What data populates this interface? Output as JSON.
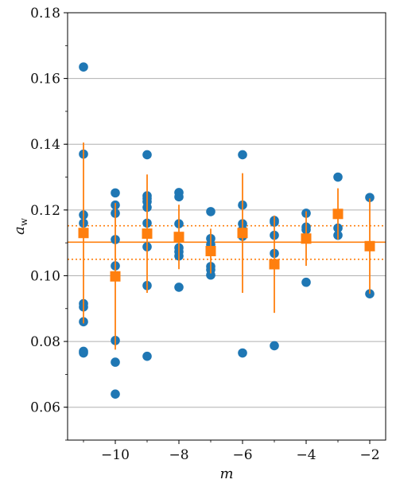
{
  "chart_data": {
    "type": "scatter",
    "title": "",
    "xlabel": "m",
    "ylabel": "a",
    "ylabel_subscript": "w",
    "xlim": [
      -11.5,
      -1.5
    ],
    "ylim": [
      0.05,
      0.18
    ],
    "x_ticks": [
      -10,
      -8,
      -6,
      -4,
      -2
    ],
    "x_tick_labels": [
      "−10",
      "−8",
      "−6",
      "−4",
      "−2"
    ],
    "y_ticks": [
      0.06,
      0.08,
      0.1,
      0.12,
      0.14,
      0.16,
      0.18
    ],
    "y_tick_labels": [
      "0.06",
      "0.08",
      "0.10",
      "0.12",
      "0.14",
      "0.16",
      "0.18"
    ],
    "y_minor_step": 0.01,
    "x_minor_step": 1,
    "grid": "y-major",
    "colors": {
      "points": "#1f77b4",
      "means": "#ff7f0e",
      "grid": "#b0b0b0"
    },
    "series": [
      {
        "kind": "individual",
        "points": [
          {
            "x": -11,
            "y": 0.1635
          },
          {
            "x": -11,
            "y": 0.137
          },
          {
            "x": -11,
            "y": 0.1185
          },
          {
            "x": -11,
            "y": 0.116
          },
          {
            "x": -11,
            "y": 0.0915
          },
          {
            "x": -11,
            "y": 0.0905
          },
          {
            "x": -11,
            "y": 0.086
          },
          {
            "x": -11,
            "y": 0.077
          },
          {
            "x": -11,
            "y": 0.0765
          },
          {
            "x": -10,
            "y": 0.1252
          },
          {
            "x": -10,
            "y": 0.1215
          },
          {
            "x": -10,
            "y": 0.119
          },
          {
            "x": -10,
            "y": 0.111
          },
          {
            "x": -10,
            "y": 0.103
          },
          {
            "x": -10,
            "y": 0.0803
          },
          {
            "x": -10,
            "y": 0.0737
          },
          {
            "x": -10,
            "y": 0.064
          },
          {
            "x": -9,
            "y": 0.1368
          },
          {
            "x": -9,
            "y": 0.1243
          },
          {
            "x": -9,
            "y": 0.1235
          },
          {
            "x": -9,
            "y": 0.1225
          },
          {
            "x": -9,
            "y": 0.1208
          },
          {
            "x": -9,
            "y": 0.116
          },
          {
            "x": -9,
            "y": 0.1088
          },
          {
            "x": -9,
            "y": 0.097
          },
          {
            "x": -9,
            "y": 0.0755
          },
          {
            "x": -8,
            "y": 0.1253
          },
          {
            "x": -8,
            "y": 0.124
          },
          {
            "x": -8,
            "y": 0.1158
          },
          {
            "x": -8,
            "y": 0.1085
          },
          {
            "x": -8,
            "y": 0.1073
          },
          {
            "x": -8,
            "y": 0.106
          },
          {
            "x": -8,
            "y": 0.0965
          },
          {
            "x": -7,
            "y": 0.1195
          },
          {
            "x": -7,
            "y": 0.1113
          },
          {
            "x": -7,
            "y": 0.1095
          },
          {
            "x": -7,
            "y": 0.1028
          },
          {
            "x": -7,
            "y": 0.1018
          },
          {
            "x": -7,
            "y": 0.1002
          },
          {
            "x": -6,
            "y": 0.1368
          },
          {
            "x": -6,
            "y": 0.1215
          },
          {
            "x": -6,
            "y": 0.1158
          },
          {
            "x": -6,
            "y": 0.114
          },
          {
            "x": -6,
            "y": 0.112
          },
          {
            "x": -6,
            "y": 0.0765
          },
          {
            "x": -5,
            "y": 0.1168
          },
          {
            "x": -5,
            "y": 0.1163
          },
          {
            "x": -5,
            "y": 0.1123
          },
          {
            "x": -5,
            "y": 0.1068
          },
          {
            "x": -5,
            "y": 0.0787
          },
          {
            "x": -4,
            "y": 0.119
          },
          {
            "x": -4,
            "y": 0.1148
          },
          {
            "x": -4,
            "y": 0.114
          },
          {
            "x": -4,
            "y": 0.098
          },
          {
            "x": -3,
            "y": 0.13
          },
          {
            "x": -3,
            "y": 0.1145
          },
          {
            "x": -3,
            "y": 0.1123
          },
          {
            "x": -2,
            "y": 0.1238
          },
          {
            "x": -2,
            "y": 0.0945
          }
        ]
      },
      {
        "kind": "mean_with_error",
        "points": [
          {
            "x": -11,
            "y": 0.113,
            "err": 0.0275
          },
          {
            "x": -10,
            "y": 0.0998,
            "err": 0.0223
          },
          {
            "x": -9,
            "y": 0.1128,
            "err": 0.018
          },
          {
            "x": -8,
            "y": 0.1118,
            "err": 0.0098
          },
          {
            "x": -7,
            "y": 0.1075,
            "err": 0.0068
          },
          {
            "x": -6,
            "y": 0.113,
            "err": 0.0182
          },
          {
            "x": -5,
            "y": 0.1035,
            "err": 0.0148
          },
          {
            "x": -4,
            "y": 0.1113,
            "err": 0.0083
          },
          {
            "x": -3,
            "y": 0.1188,
            "err": 0.0078
          },
          {
            "x": -2,
            "y": 0.109,
            "err": 0.0145
          }
        ]
      }
    ],
    "reference_lines": [
      {
        "y": 0.1102,
        "style": "solid"
      },
      {
        "y": 0.1152,
        "style": "dotted"
      },
      {
        "y": 0.105,
        "style": "dotted"
      }
    ]
  }
}
